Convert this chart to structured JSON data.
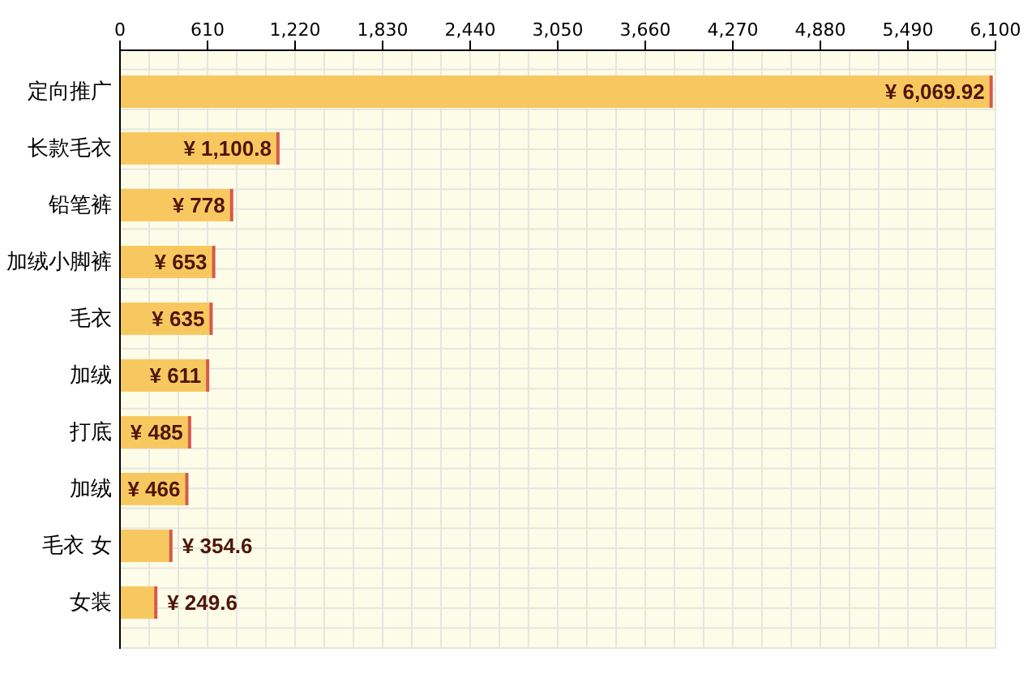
{
  "chart_data": {
    "type": "bar",
    "orientation": "horizontal",
    "categories": [
      "定向推广",
      "长款毛衣",
      "铅笔裤",
      "加绒小脚裤",
      "毛衣",
      "加绒",
      "打底",
      "加绒",
      "毛衣 女",
      "女装"
    ],
    "values": [
      6069.92,
      1100.8,
      778,
      653,
      635,
      611,
      485,
      466,
      354.6,
      249.6
    ],
    "value_labels": [
      "¥ 6,069.92",
      "¥ 1,100.8",
      "¥ 778",
      "¥ 653",
      "¥ 635",
      "¥ 611",
      "¥ 485",
      "¥ 466",
      "¥ 354.6",
      "¥ 249.6"
    ],
    "color": "#f8c860",
    "xlim": [
      0,
      6100
    ],
    "xticks": [
      0,
      610,
      {
        "value": 1220,
        "label": "1,220"
      },
      {
        "value": 1830,
        "label": "1,830"
      },
      {
        "value": 2440,
        "label": "2,440"
      },
      {
        "value": 3050,
        "label": "3,050"
      },
      {
        "value": 3660,
        "label": "3,660"
      },
      {
        "value": 4270,
        "label": "4,270"
      },
      {
        "value": 4880,
        "label": "4,880"
      },
      {
        "value": 5490,
        "label": "5,490"
      },
      {
        "value": 6100,
        "label": "6,100"
      }
    ],
    "grid": true
  }
}
